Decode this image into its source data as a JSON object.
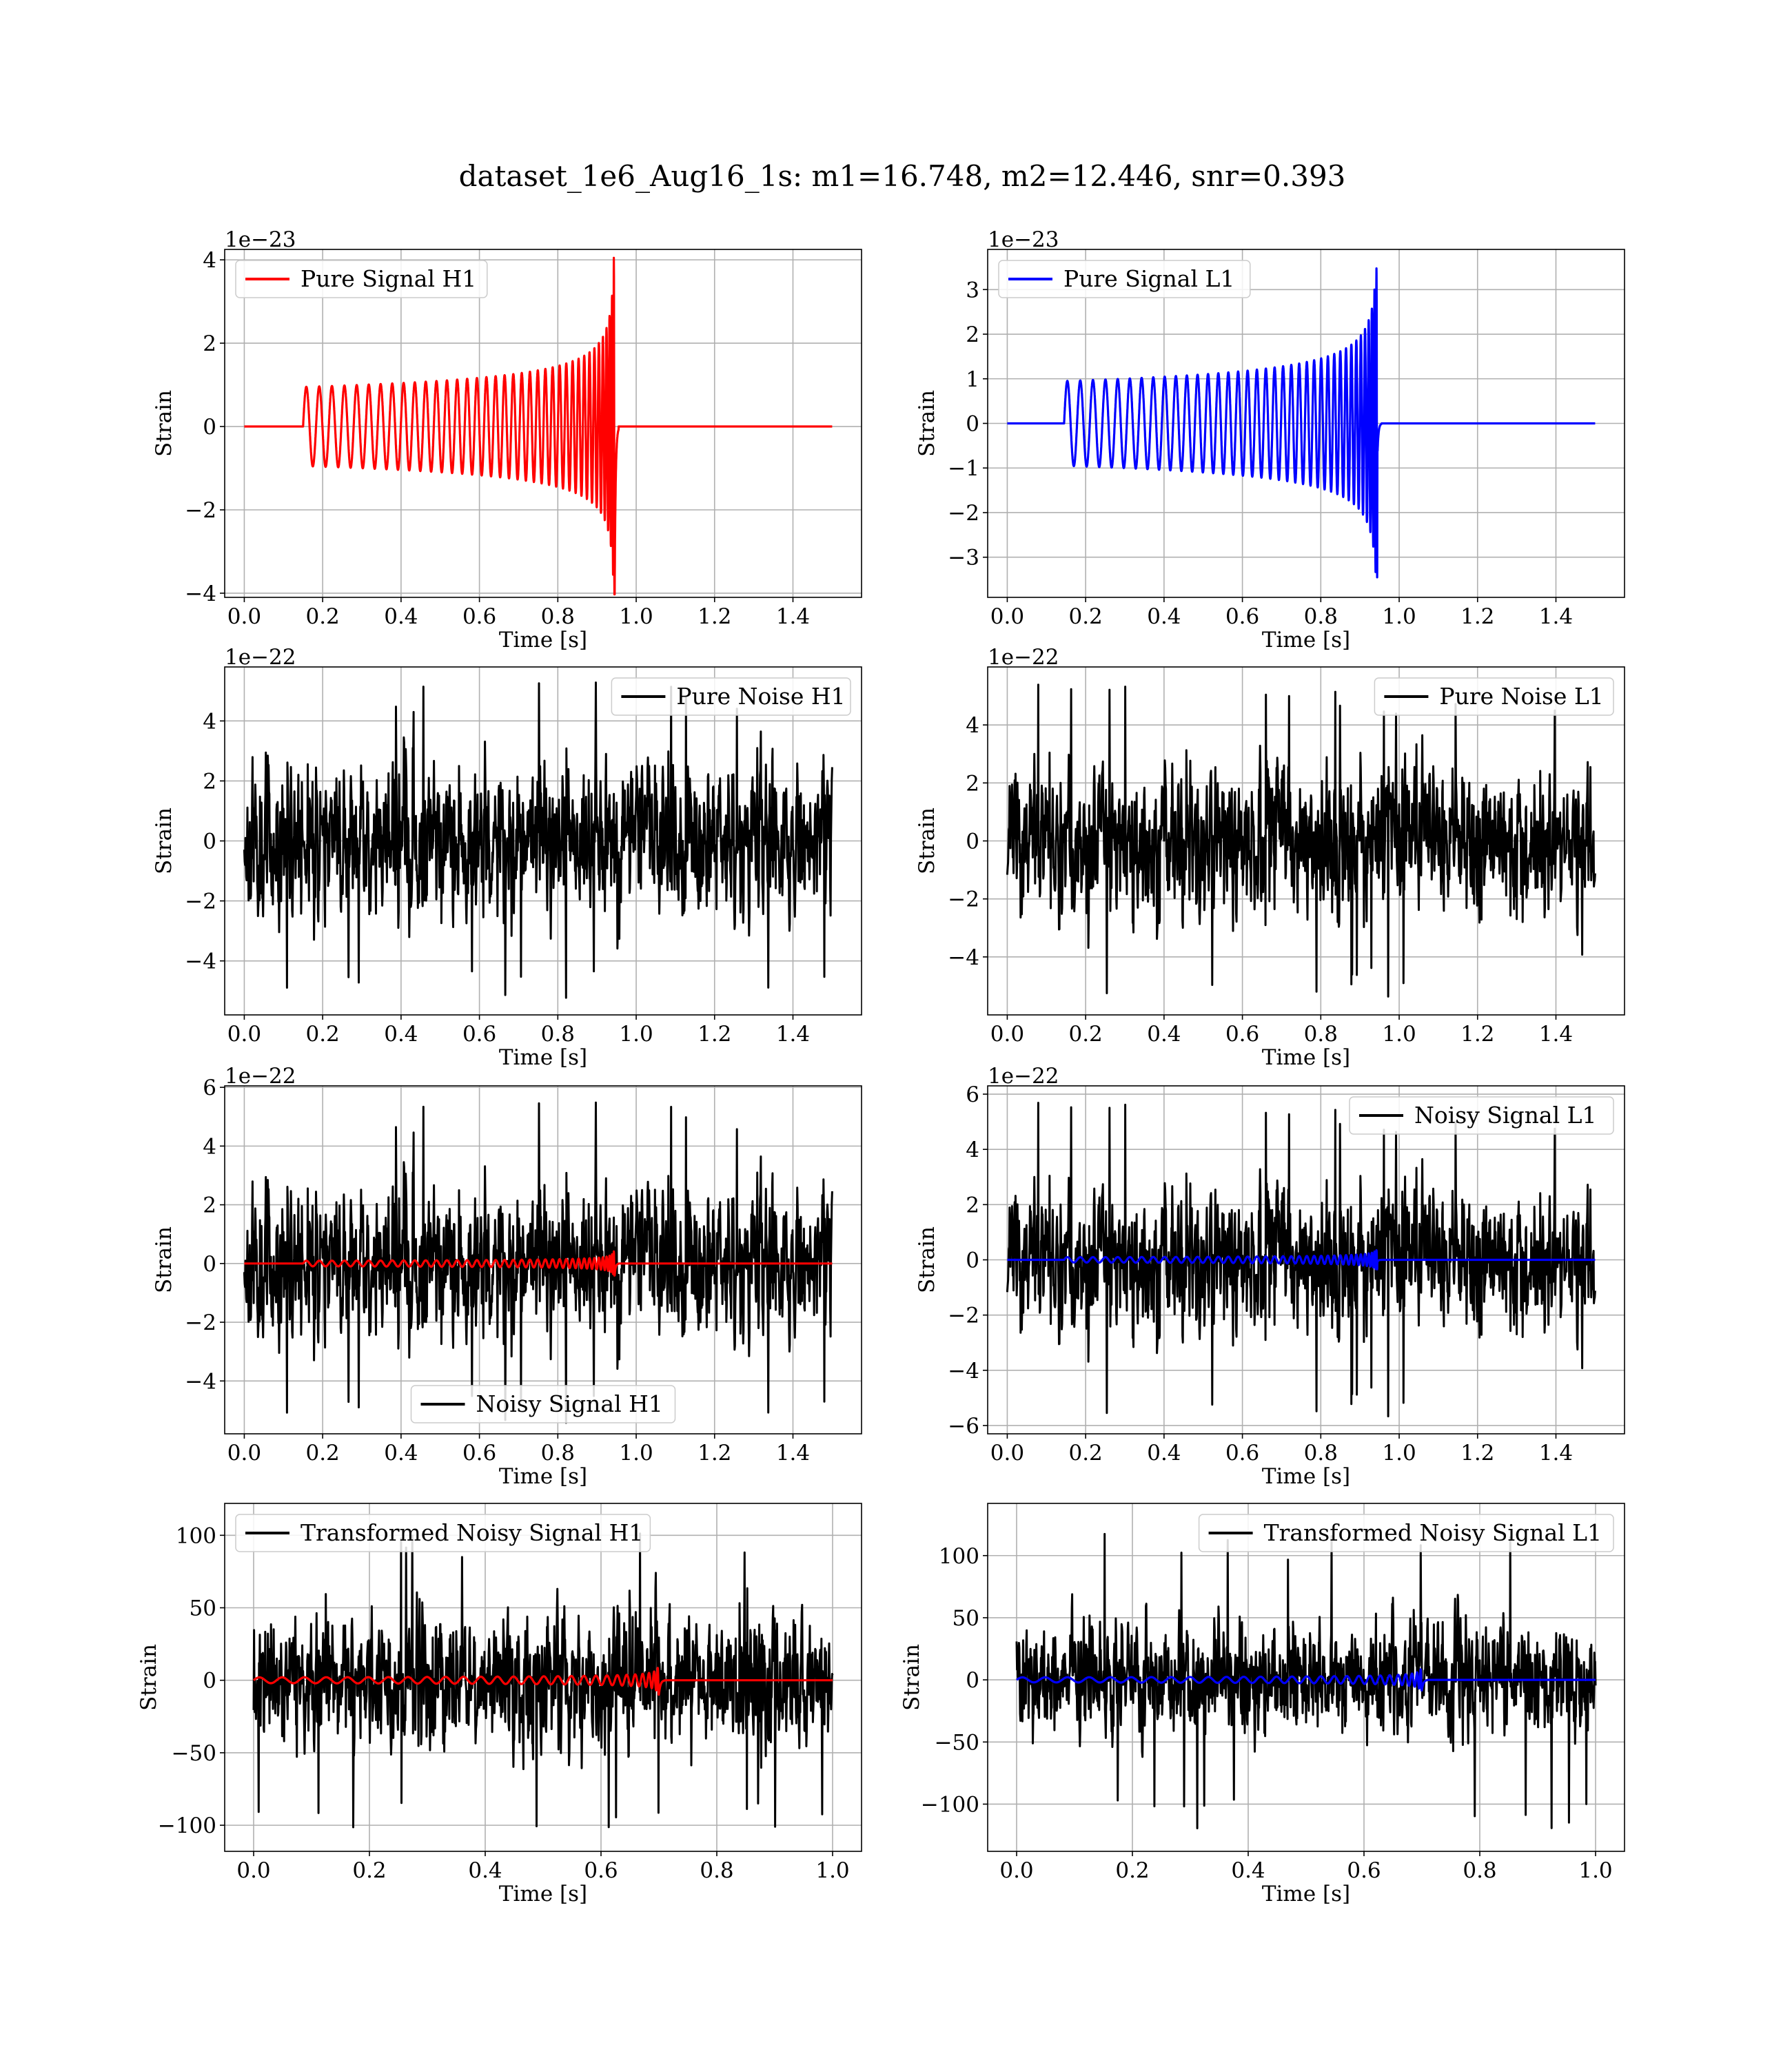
{
  "figure": {
    "title": "dataset_1e6_Aug16_1s: m1=16.748, m2=12.446, snr=0.393"
  },
  "params": {
    "m1": 16.748,
    "m2": 12.446,
    "snr": 0.393
  },
  "colors": {
    "h1_signal": "#ff0000",
    "l1_signal": "#0000ff",
    "noise": "#000000",
    "grid": "#b0b0b0"
  },
  "chart_data": [
    {
      "type": "line",
      "xlabel": "Time [s]",
      "ylabel": "Strain",
      "xlim": [
        -0.05,
        1.575
      ],
      "ylim": [
        -4.1,
        4.25
      ],
      "xticks": [
        0.0,
        0.2,
        0.4,
        0.6,
        0.8,
        1.0,
        1.2,
        1.4
      ],
      "yticks": [
        -4,
        -2,
        0,
        2,
        4
      ],
      "offset_text": "1e−23",
      "legend": {
        "placement": "upper-left"
      },
      "series": [
        {
          "name": "Pure Signal H1",
          "kind": "chirp",
          "color": "#ff0000",
          "t_start": 0.0,
          "t_end": 1.5,
          "chirp_start": 0.15,
          "merger": 0.945,
          "base_amp": 0.95,
          "peak_amp": 4.05,
          "f0": 30,
          "f1": 280
        }
      ]
    },
    {
      "type": "line",
      "xlabel": "Time [s]",
      "ylabel": "Strain",
      "xlim": [
        -0.05,
        1.575
      ],
      "ylim": [
        -3.9,
        3.9
      ],
      "xticks": [
        0.0,
        0.2,
        0.4,
        0.6,
        0.8,
        1.0,
        1.2,
        1.4
      ],
      "yticks": [
        -3,
        -2,
        -1,
        0,
        1,
        2,
        3
      ],
      "offset_text": "1e−23",
      "legend": {
        "placement": "upper-left"
      },
      "series": [
        {
          "name": "Pure Signal L1",
          "kind": "chirp",
          "color": "#0000ff",
          "t_start": 0.0,
          "t_end": 1.5,
          "chirp_start": 0.145,
          "merger": 0.945,
          "base_amp": 0.95,
          "peak_amp": 3.5,
          "f0": 30,
          "f1": 280
        }
      ]
    },
    {
      "type": "line",
      "xlabel": "Time [s]",
      "ylabel": "Strain",
      "xlim": [
        -0.05,
        1.575
      ],
      "ylim": [
        -5.8,
        5.8
      ],
      "xticks": [
        0.0,
        0.2,
        0.4,
        0.6,
        0.8,
        1.0,
        1.2,
        1.4
      ],
      "yticks": [
        -4,
        -2,
        0,
        2,
        4
      ],
      "offset_text": "1e−22",
      "legend": {
        "placement": "upper-right"
      },
      "series": [
        {
          "name": "Pure Noise H1",
          "kind": "noise",
          "color": "#000000",
          "t_start": 0.0,
          "t_end": 1.5,
          "amp": 1.7,
          "peak": 5.3,
          "seed": 11
        }
      ]
    },
    {
      "type": "line",
      "xlabel": "Time [s]",
      "ylabel": "Strain",
      "xlim": [
        -0.05,
        1.575
      ],
      "ylim": [
        -6.0,
        6.0
      ],
      "xticks": [
        0.0,
        0.2,
        0.4,
        0.6,
        0.8,
        1.0,
        1.2,
        1.4
      ],
      "yticks": [
        -4,
        -2,
        0,
        2,
        4
      ],
      "offset_text": "1e−22",
      "legend": {
        "placement": "upper-right"
      },
      "series": [
        {
          "name": "Pure Noise L1",
          "kind": "noise",
          "color": "#000000",
          "t_start": 0.0,
          "t_end": 1.5,
          "amp": 1.7,
          "peak": 5.4,
          "seed": 23
        }
      ]
    },
    {
      "type": "line",
      "xlabel": "Time [s]",
      "ylabel": "Strain",
      "xlim": [
        -0.05,
        1.575
      ],
      "ylim": [
        -5.8,
        6.05
      ],
      "xticks": [
        0.0,
        0.2,
        0.4,
        0.6,
        0.8,
        1.0,
        1.2,
        1.4
      ],
      "yticks": [
        -4,
        -2,
        0,
        2,
        4,
        6
      ],
      "offset_text": "1e−22",
      "legend": {
        "placement": "lower-center"
      },
      "series": [
        {
          "name": "Noisy Signal H1",
          "kind": "noise",
          "color": "#000000",
          "t_start": 0.0,
          "t_end": 1.5,
          "amp": 1.7,
          "peak": 5.5,
          "seed": 11
        },
        {
          "name": "",
          "kind": "chirp",
          "color": "#ff0000",
          "t_start": 0.0,
          "t_end": 1.5,
          "chirp_start": 0.15,
          "merger": 0.945,
          "base_amp": 0.095,
          "peak_amp": 0.41,
          "f0": 30,
          "f1": 280
        }
      ]
    },
    {
      "type": "line",
      "xlabel": "Time [s]",
      "ylabel": "Strain",
      "xlim": [
        -0.05,
        1.575
      ],
      "ylim": [
        -6.3,
        6.3
      ],
      "xticks": [
        0.0,
        0.2,
        0.4,
        0.6,
        0.8,
        1.0,
        1.2,
        1.4
      ],
      "yticks": [
        -6,
        -4,
        -2,
        0,
        2,
        4,
        6
      ],
      "offset_text": "1e−22",
      "legend": {
        "placement": "upper-right"
      },
      "series": [
        {
          "name": "Noisy Signal L1",
          "kind": "noise",
          "color": "#000000",
          "t_start": 0.0,
          "t_end": 1.5,
          "amp": 1.7,
          "peak": 5.7,
          "seed": 23
        },
        {
          "name": "",
          "kind": "chirp",
          "color": "#0000ff",
          "t_start": 0.0,
          "t_end": 1.5,
          "chirp_start": 0.145,
          "merger": 0.945,
          "base_amp": 0.095,
          "peak_amp": 0.35,
          "f0": 30,
          "f1": 280
        }
      ]
    },
    {
      "type": "line",
      "xlabel": "Time [s]",
      "ylabel": "Strain",
      "xlim": [
        -0.05,
        1.05
      ],
      "ylim": [
        -118,
        122
      ],
      "xticks": [
        0.0,
        0.2,
        0.4,
        0.6,
        0.8,
        1.0
      ],
      "yticks": [
        -100,
        -50,
        0,
        50,
        100
      ],
      "offset_text": "",
      "legend": {
        "placement": "upper-left"
      },
      "series": [
        {
          "name": "Transformed Noisy Signal H1",
          "kind": "noise",
          "color": "#000000",
          "t_start": 0.0,
          "t_end": 1.0,
          "amp": 30,
          "peak": 103,
          "seed": 37
        },
        {
          "name": "",
          "kind": "chirp",
          "color": "#ff0000",
          "t_start": 0.0,
          "t_end": 1.0,
          "chirp_start": 0.0,
          "merger": 0.7,
          "base_amp": 2.0,
          "peak_amp": 12,
          "f0": 25,
          "f1": 240
        }
      ]
    },
    {
      "type": "line",
      "xlabel": "Time [s]",
      "ylabel": "Strain",
      "xlim": [
        -0.05,
        1.05
      ],
      "ylim": [
        -138,
        142
      ],
      "xticks": [
        0.0,
        0.2,
        0.4,
        0.6,
        0.8,
        1.0
      ],
      "yticks": [
        -100,
        -50,
        0,
        50,
        100
      ],
      "offset_text": "",
      "legend": {
        "placement": "upper-right"
      },
      "series": [
        {
          "name": "Transformed Noisy Signal L1",
          "kind": "noise",
          "color": "#000000",
          "t_start": 0.0,
          "t_end": 1.0,
          "amp": 30,
          "peak": 120,
          "seed": 41
        },
        {
          "name": "",
          "kind": "chirp",
          "color": "#0000ff",
          "t_start": 0.0,
          "t_end": 1.0,
          "chirp_start": 0.0,
          "merger": 0.7,
          "base_amp": 2.0,
          "peak_amp": 10,
          "f0": 25,
          "f1": 240
        }
      ]
    }
  ]
}
